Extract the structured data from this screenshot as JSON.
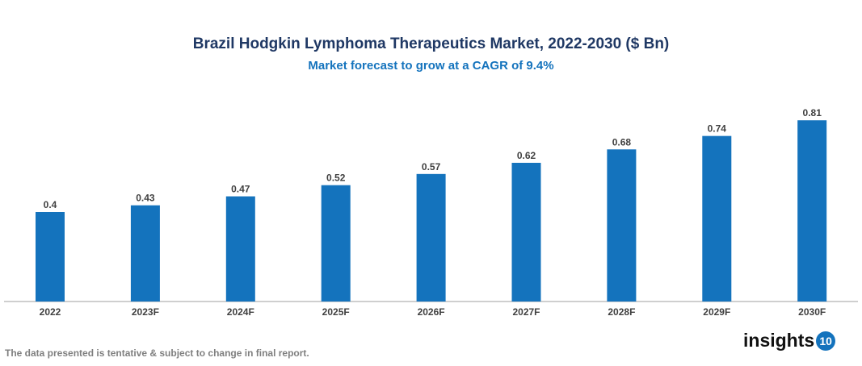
{
  "chart_data": {
    "type": "bar",
    "title": "Brazil Hodgkin Lymphoma Therapeutics Market, 2022-2030 ($ Bn)",
    "subtitle": "Market forecast to grow at a CAGR of 9.4%",
    "categories": [
      "2022",
      "2023F",
      "2024F",
      "2025F",
      "2026F",
      "2027F",
      "2028F",
      "2029F",
      "2030F"
    ],
    "values": [
      0.4,
      0.43,
      0.47,
      0.52,
      0.57,
      0.62,
      0.68,
      0.74,
      0.81
    ],
    "xlabel": "",
    "ylabel": "",
    "grid": false,
    "bar_color": "#1473bd"
  },
  "footer": {
    "note": "The data presented is tentative & subject to change in final report."
  },
  "logo": {
    "text": "insights",
    "badge": "10"
  }
}
